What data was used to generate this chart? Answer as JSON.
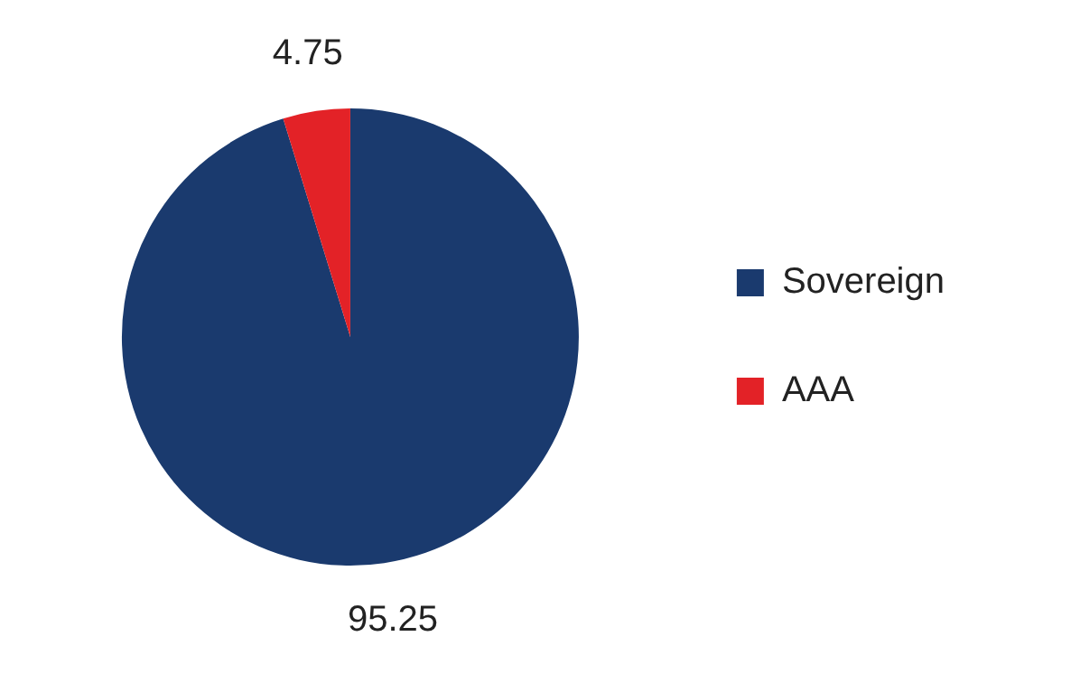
{
  "chart_data": {
    "type": "pie",
    "categories": [
      "Sovereign",
      "AAA"
    ],
    "values": [
      95.25,
      4.75
    ],
    "colors": [
      "#1a3a6e",
      "#e32227"
    ],
    "legend": "right",
    "data_labels": true
  }
}
